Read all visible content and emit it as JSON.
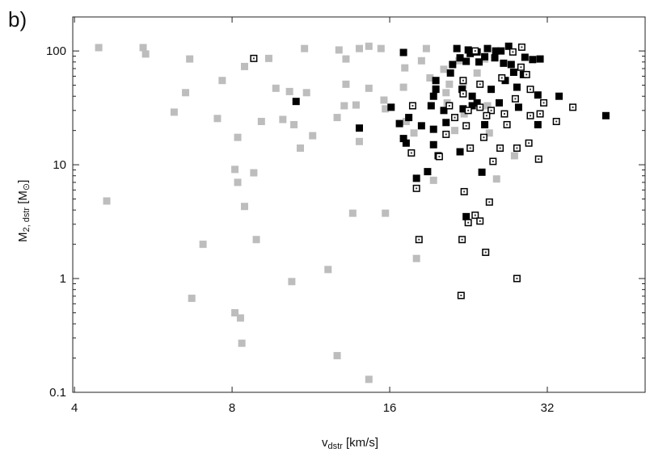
{
  "chart_data": {
    "type": "scatter",
    "panel_label": "b)",
    "xlabel_main": "v",
    "xlabel_sub": "dstr",
    "xlabel_unit": " [km/s]",
    "ylabel_main": "M",
    "ylabel_sub": "2, dstr",
    "ylabel_unit_open": " [M",
    "ylabel_unit_sub": "⊙",
    "ylabel_unit_close": "]",
    "x_scale": "log2",
    "y_scale": "log10",
    "xlim": [
      3.97,
      49.2
    ],
    "ylim": [
      0.1,
      199
    ],
    "x_ticks": [
      {
        "v": 4,
        "label": "4"
      },
      {
        "v": 8,
        "label": "8"
      },
      {
        "v": 16,
        "label": "16"
      },
      {
        "v": 32,
        "label": "32"
      }
    ],
    "y_ticks": [
      {
        "v": 0.1,
        "label": "0.1"
      },
      {
        "v": 1,
        "label": "1"
      },
      {
        "v": 10,
        "label": "10"
      },
      {
        "v": 100,
        "label": "100"
      }
    ],
    "grid": false,
    "colors": {
      "gray": "#bdbdbd",
      "black": "#000000",
      "open": "#000000"
    },
    "series": [
      {
        "marker": "filled-gray-square",
        "points": [
          [
            4.45,
            107
          ],
          [
            4.61,
            4.8
          ],
          [
            5.41,
            107
          ],
          [
            5.47,
            94
          ],
          [
            6.2,
            29
          ],
          [
            6.52,
            43
          ],
          [
            6.64,
            85
          ],
          [
            6.7,
            0.67
          ],
          [
            7.04,
            2.0
          ],
          [
            7.5,
            25.5
          ],
          [
            7.66,
            55
          ],
          [
            8.1,
            9.1
          ],
          [
            8.2,
            7.0
          ],
          [
            8.2,
            17.4
          ],
          [
            8.45,
            73
          ],
          [
            8.45,
            4.3
          ],
          [
            8.1,
            0.5
          ],
          [
            8.3,
            0.45
          ],
          [
            8.35,
            0.27
          ],
          [
            8.8,
            8.5
          ],
          [
            8.9,
            2.2
          ],
          [
            9.1,
            24
          ],
          [
            9.4,
            86
          ],
          [
            9.7,
            47
          ],
          [
            10.0,
            25
          ],
          [
            10.3,
            44
          ],
          [
            10.5,
            22.5
          ],
          [
            10.4,
            0.94
          ],
          [
            10.8,
            14
          ],
          [
            11.0,
            105
          ],
          [
            11.1,
            43
          ],
          [
            11.4,
            18
          ],
          [
            12.2,
            1.2
          ],
          [
            12.8,
            102
          ],
          [
            12.7,
            26
          ],
          [
            13.2,
            85
          ],
          [
            13.2,
            51
          ],
          [
            13.1,
            33
          ],
          [
            13.6,
            3.75
          ],
          [
            13.8,
            33.5
          ],
          [
            14.0,
            16
          ],
          [
            14.0,
            105
          ],
          [
            14.6,
            110
          ],
          [
            14.6,
            47
          ],
          [
            12.7,
            0.21
          ],
          [
            14.6,
            0.13
          ],
          [
            15.7,
            3.75
          ],
          [
            15.4,
            105
          ],
          [
            15.6,
            37
          ],
          [
            15.7,
            31
          ],
          [
            17.0,
            48
          ],
          [
            17.1,
            71
          ],
          [
            17.2,
            24
          ],
          [
            17.8,
            19
          ],
          [
            18.0,
            1.5
          ],
          [
            18.4,
            82
          ],
          [
            18.8,
            105
          ],
          [
            19.1,
            58
          ],
          [
            19.6,
            47
          ],
          [
            19.4,
            7.3
          ],
          [
            20.3,
            69
          ],
          [
            20.5,
            43
          ],
          [
            20.6,
            35
          ],
          [
            20.8,
            51
          ],
          [
            21.3,
            20
          ],
          [
            21.7,
            82
          ],
          [
            22.1,
            50
          ],
          [
            22.2,
            28
          ],
          [
            23.5,
            64
          ],
          [
            24.3,
            85
          ],
          [
            24.6,
            33
          ],
          [
            24.8,
            19
          ],
          [
            25.6,
            7.5
          ],
          [
            27.7,
            12
          ]
        ]
      },
      {
        "marker": "filled-black-square",
        "points": [
          [
            14.0,
            21
          ],
          [
            17.0,
            97
          ],
          [
            16.1,
            32
          ],
          [
            16.7,
            23
          ],
          [
            17.0,
            17
          ],
          [
            17.2,
            15.5
          ],
          [
            18.0,
            7.6
          ],
          [
            17.4,
            26
          ],
          [
            18.4,
            22
          ],
          [
            18.9,
            8.7
          ],
          [
            10.6,
            36
          ],
          [
            19.2,
            33
          ],
          [
            19.6,
            55
          ],
          [
            19.6,
            46
          ],
          [
            19.4,
            40
          ],
          [
            19.4,
            15
          ],
          [
            19.4,
            20.5
          ],
          [
            19.8,
            12
          ],
          [
            20.3,
            30
          ],
          [
            20.5,
            23.5
          ],
          [
            20.9,
            64
          ],
          [
            21.1,
            76
          ],
          [
            21.5,
            105
          ],
          [
            21.8,
            87
          ],
          [
            22.0,
            46
          ],
          [
            22.1,
            31
          ],
          [
            22.4,
            81
          ],
          [
            22.6,
            102
          ],
          [
            23.0,
            33
          ],
          [
            23.5,
            98
          ],
          [
            23.5,
            35
          ],
          [
            23.7,
            80
          ],
          [
            24.0,
            8.6
          ],
          [
            24.3,
            89
          ],
          [
            24.6,
            105
          ],
          [
            25.0,
            46
          ],
          [
            25.4,
            87
          ],
          [
            25.9,
            35
          ],
          [
            26.1,
            100
          ],
          [
            26.4,
            78
          ],
          [
            26.6,
            55
          ],
          [
            27.0,
            110
          ],
          [
            27.3,
            76
          ],
          [
            27.6,
            65
          ],
          [
            28.0,
            48
          ],
          [
            28.2,
            32
          ],
          [
            28.8,
            62
          ],
          [
            29.0,
            88
          ],
          [
            30.0,
            84
          ],
          [
            30.7,
            41
          ],
          [
            30.7,
            22.5
          ],
          [
            31.0,
            85
          ],
          [
            33.7,
            40
          ],
          [
            41.4,
            27
          ],
          [
            22.4,
            3.5
          ],
          [
            21.8,
            13
          ],
          [
            24.3,
            22.5
          ],
          [
            23.0,
            40
          ],
          [
            25.5,
            100
          ],
          [
            22.8,
            95
          ]
        ]
      },
      {
        "marker": "open-square-dot",
        "points": [
          [
            8.8,
            86
          ],
          [
            17.6,
            12.7
          ],
          [
            18.0,
            6.2
          ],
          [
            18.2,
            2.2
          ],
          [
            17.7,
            33
          ],
          [
            22.2,
            5.8
          ],
          [
            22.0,
            2.2
          ],
          [
            21.9,
            0.71
          ],
          [
            23.3,
            3.6
          ],
          [
            22.6,
            3.1
          ],
          [
            23.8,
            3.2
          ],
          [
            24.4,
            1.7
          ],
          [
            28.0,
            1.0
          ],
          [
            24.8,
            4.7
          ],
          [
            22.1,
            55
          ],
          [
            23.8,
            51
          ],
          [
            25.2,
            10.7
          ],
          [
            24.2,
            17.4
          ],
          [
            28.0,
            14
          ],
          [
            29.7,
            27
          ],
          [
            30.8,
            11.2
          ],
          [
            31.5,
            35
          ],
          [
            33.3,
            24
          ],
          [
            35.8,
            32
          ],
          [
            29.7,
            46
          ],
          [
            29.2,
            62
          ],
          [
            28.5,
            72
          ],
          [
            27.5,
            98
          ],
          [
            26.2,
            58
          ],
          [
            25.0,
            30
          ],
          [
            22.6,
            30
          ],
          [
            22.4,
            22
          ],
          [
            23.8,
            32
          ],
          [
            26.8,
            22.5
          ],
          [
            26.5,
            28
          ],
          [
            26.0,
            14
          ],
          [
            29.5,
            15.5
          ],
          [
            19.9,
            11.8
          ],
          [
            20.5,
            18.5
          ],
          [
            21.3,
            26
          ],
          [
            22.1,
            42
          ],
          [
            23.3,
            100
          ],
          [
            28.6,
            108
          ],
          [
            20.8,
            33
          ],
          [
            22.8,
            14
          ],
          [
            24.5,
            27
          ],
          [
            27.8,
            38
          ],
          [
            31.0,
            28
          ]
        ]
      }
    ]
  }
}
